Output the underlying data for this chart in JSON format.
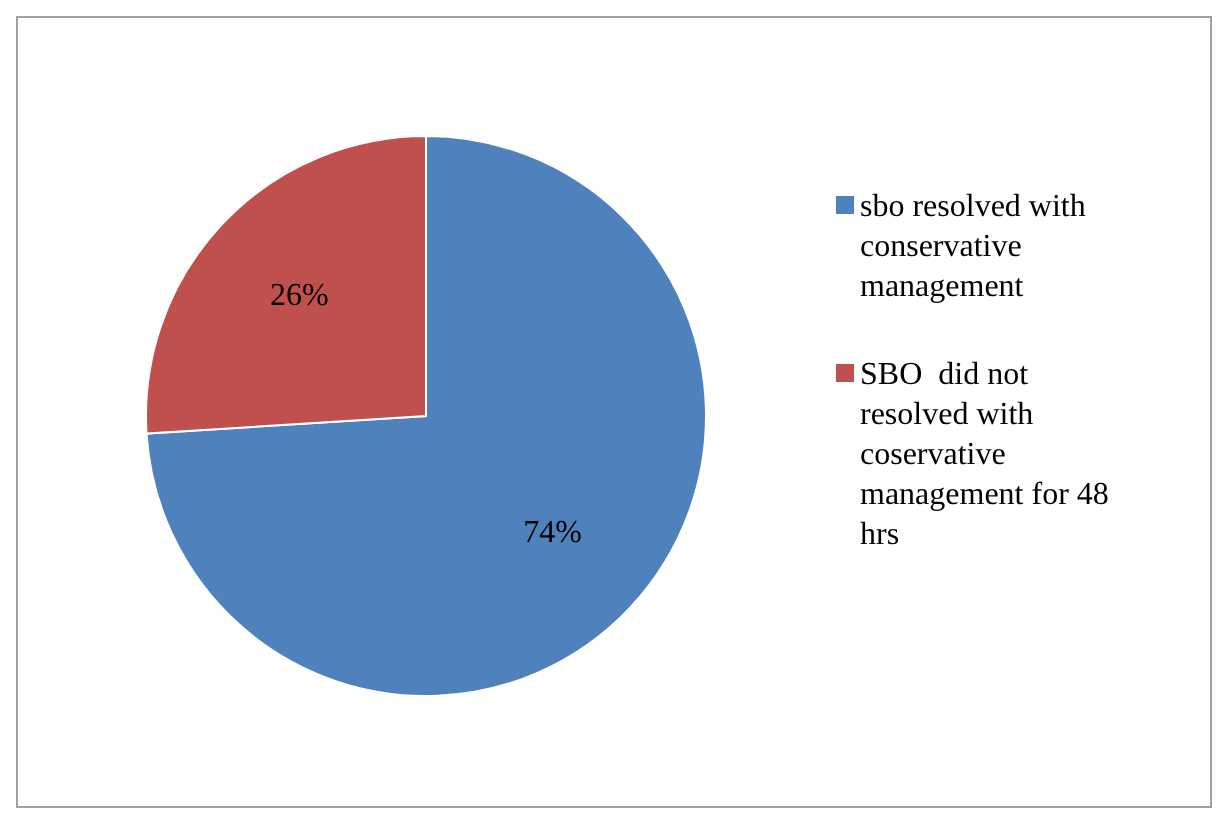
{
  "chart_data": {
    "type": "pie",
    "categories": [
      "sbo resolved with conservative management",
      "SBO  did not resolved with coservative management for 48 hrs"
    ],
    "values": [
      74,
      26
    ],
    "colors": [
      "#4f81bd",
      "#c0504d"
    ],
    "value_labels": [
      "74%",
      "26%"
    ],
    "legend": "right"
  }
}
